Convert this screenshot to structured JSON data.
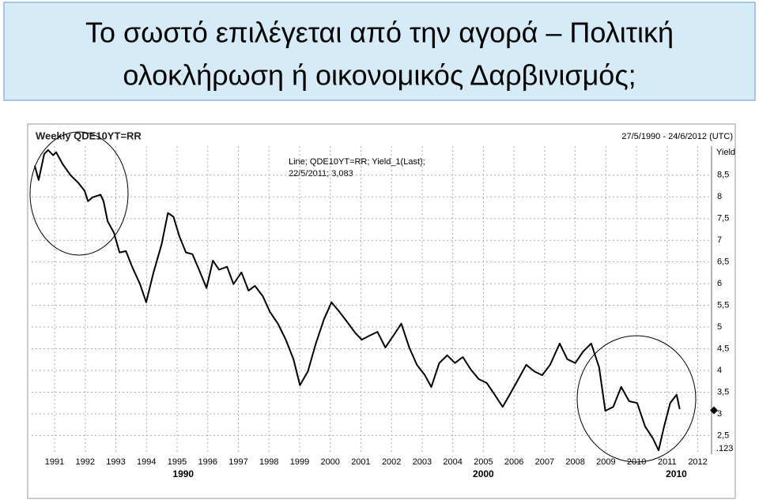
{
  "slide": {
    "title_lines": [
      "Το σωστό επιλέγεται από την αγορά – Πολιτική",
      "ολοκλήρωση ή οικονομικός Δαρβινισμός;"
    ]
  },
  "chart_data": {
    "type": "line",
    "title": "Weekly QDE10YT=RR",
    "subtitle": "27/5/1990 - 24/6/2012 (UTC)",
    "legend_lines": [
      "Line; QDE10YT=RR; Yield_1(Last);",
      "22/5/2011; 3,083"
    ],
    "y_axis_label": "Yield",
    "corner_label": ".123",
    "color": "#000000",
    "x": [
      1990.35,
      1990.48,
      1990.66,
      1990.79,
      1990.95,
      1991.05,
      1991.26,
      1991.52,
      1991.78,
      1991.98,
      1992.09,
      1992.24,
      1992.5,
      1992.6,
      1992.73,
      1992.94,
      1993.12,
      1993.33,
      1993.53,
      1993.79,
      1993.99,
      1994.23,
      1994.49,
      1994.7,
      1994.88,
      1995.08,
      1995.29,
      1995.5,
      1995.7,
      1995.96,
      1996.17,
      1996.37,
      1996.63,
      1996.84,
      1997.1,
      1997.33,
      1997.54,
      1997.8,
      1998.03,
      1998.29,
      1998.55,
      1998.8,
      1999.01,
      1999.27,
      1999.53,
      1999.79,
      2000.04,
      2000.3,
      2000.56,
      2000.82,
      2001.03,
      2001.28,
      2001.54,
      2001.8,
      2002.06,
      2002.32,
      2002.58,
      2002.83,
      2003.09,
      2003.3,
      2003.56,
      2003.82,
      2004.07,
      2004.33,
      2004.59,
      2004.85,
      2005.11,
      2005.37,
      2005.63,
      2005.88,
      2006.14,
      2006.4,
      2006.66,
      2006.92,
      2007.18,
      2007.49,
      2007.74,
      2008.0,
      2008.26,
      2008.52,
      2008.78,
      2008.98,
      2009.24,
      2009.5,
      2009.76,
      2010.02,
      2010.28,
      2010.53,
      2010.72,
      2010.9,
      2011.1,
      2011.31,
      2011.41
    ],
    "values": [
      8.72,
      8.39,
      8.99,
      9.08,
      8.96,
      9.03,
      8.76,
      8.5,
      8.32,
      8.14,
      7.9,
      7.99,
      8.05,
      7.9,
      7.44,
      7.17,
      6.72,
      6.75,
      6.39,
      5.99,
      5.57,
      6.26,
      6.9,
      7.63,
      7.54,
      7.08,
      6.72,
      6.68,
      6.35,
      5.9,
      6.53,
      6.32,
      6.39,
      5.99,
      6.26,
      5.84,
      5.95,
      5.71,
      5.35,
      5.08,
      4.71,
      4.26,
      3.66,
      3.98,
      4.62,
      5.17,
      5.57,
      5.35,
      5.11,
      4.86,
      4.71,
      4.8,
      4.89,
      4.53,
      4.8,
      5.08,
      4.53,
      4.13,
      3.89,
      3.62,
      4.17,
      4.35,
      4.17,
      4.31,
      4.02,
      3.8,
      3.71,
      3.44,
      3.16,
      3.47,
      3.8,
      4.13,
      3.98,
      3.89,
      4.13,
      4.62,
      4.26,
      4.17,
      4.44,
      4.62,
      4.07,
      3.07,
      3.16,
      3.62,
      3.29,
      3.25,
      2.71,
      2.44,
      2.16,
      2.71,
      3.25,
      3.44,
      3.11
    ],
    "last_marker": 3.08,
    "xlim": [
      1990.25,
      2012.45
    ],
    "ylim": [
      2.07,
      9.17
    ],
    "xticks": [
      1991,
      1992,
      1993,
      1994,
      1995,
      1996,
      1997,
      1998,
      1999,
      2000,
      2001,
      2002,
      2003,
      2004,
      2005,
      2006,
      2007,
      2008,
      2009,
      2010,
      2011,
      2012
    ],
    "decade_labels": [
      {
        "value": 1995.2,
        "label": "1990"
      },
      {
        "value": 2005.0,
        "label": "2000"
      },
      {
        "value": 2011.3,
        "label": "2010"
      }
    ],
    "yticks": [
      {
        "value": 2.5,
        "label": "2,5"
      },
      3,
      {
        "value": 3.5,
        "label": "3,5"
      },
      4,
      {
        "value": 4.5,
        "label": "4,5"
      },
      5,
      {
        "value": 5.5,
        "label": "5,5"
      },
      6,
      {
        "value": 6.5,
        "label": "6,5"
      },
      7,
      {
        "value": 7.5,
        "label": "7,5"
      },
      8,
      {
        "value": 8.5,
        "label": "8,5"
      }
    ],
    "grid": true
  }
}
